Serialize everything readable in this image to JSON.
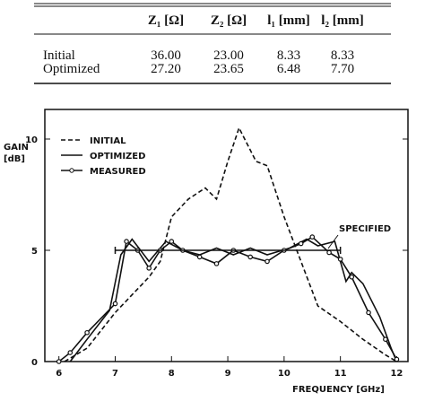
{
  "table": {
    "header": [
      "Z₁ [Ω]",
      "Z₂ [Ω]",
      "l₁ [mm]",
      "l₂ [mm]"
    ],
    "rows": [
      [
        "Initial",
        "36.00",
        "23.00",
        "8.33",
        "8.33"
      ],
      [
        "Optimized",
        "27.20",
        "23.65",
        "6.48",
        "7.70"
      ]
    ]
  },
  "chart_data": {
    "type": "line",
    "y_label": [
      "GAIN",
      "[dB]"
    ],
    "x_label": "FREQUENCY  [GHz]",
    "xlim": [
      5.75,
      12.2
    ],
    "ylim": [
      0,
      11.33
    ],
    "xticks": [
      6,
      7,
      8,
      9,
      10,
      11,
      12
    ],
    "yticks": [
      0,
      5,
      10
    ],
    "grid": false,
    "series": [
      {
        "name": "INITIAL",
        "color": "#111",
        "style": "dashed",
        "x": [
          6.1,
          6.5,
          7,
          7.3,
          7.6,
          7.8,
          8,
          8.3,
          8.6,
          8.8,
          9,
          9.2,
          9.4,
          9.5,
          9.7,
          10,
          10.3,
          10.6,
          11,
          11.4,
          11.8,
          12
        ],
        "values": [
          0,
          0.6,
          2.2,
          3,
          3.8,
          4.5,
          6.5,
          7.3,
          7.8,
          7.3,
          9,
          10.5,
          9.5,
          9,
          8.8,
          6.5,
          4.5,
          2.5,
          1.8,
          1,
          0.3,
          0
        ]
      },
      {
        "name": "OPTIMIZED",
        "color": "#111",
        "style": "solid",
        "x": [
          6.2,
          6.5,
          6.9,
          7.1,
          7.3,
          7.6,
          7.9,
          8.2,
          8.5,
          8.8,
          9.1,
          9.4,
          9.7,
          10.1,
          10.4,
          10.6,
          10.9,
          11.1,
          11.2,
          11.4,
          11.7,
          11.9,
          12
        ],
        "values": [
          0,
          1,
          2.3,
          4.8,
          5.5,
          4.5,
          5.4,
          5,
          4.8,
          5.1,
          4.8,
          5.1,
          4.8,
          5.1,
          5.5,
          5.2,
          5.4,
          3.6,
          4,
          3.5,
          2,
          0.6,
          0
        ]
      },
      {
        "name": "MEASURED",
        "color": "#111",
        "style": "markers",
        "x": [
          6,
          6.2,
          6.5,
          7,
          7.2,
          7.4,
          7.6,
          7.8,
          8,
          8.2,
          8.5,
          8.8,
          9.1,
          9.4,
          9.7,
          10,
          10.3,
          10.5,
          10.8,
          11,
          11.2,
          11.5,
          11.8,
          12
        ],
        "values": [
          0,
          0.4,
          1.3,
          2.6,
          5.4,
          5,
          4.2,
          5,
          5.4,
          5,
          4.7,
          4.4,
          5,
          4.7,
          4.5,
          5,
          5.3,
          5.6,
          4.9,
          4.6,
          3.8,
          2.2,
          1,
          0.1
        ]
      },
      {
        "name": "SPECIFIED",
        "color": "#111",
        "style": "spec",
        "x": [
          7,
          11
        ],
        "values": [
          5,
          5
        ]
      }
    ]
  }
}
